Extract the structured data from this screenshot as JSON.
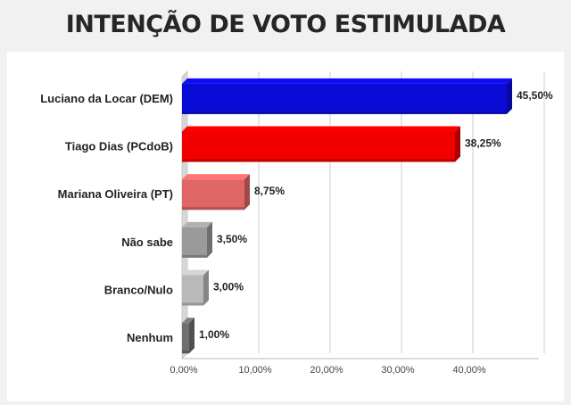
{
  "header": {
    "title": "INTENÇÃO DE VOTO ESTIMULADA"
  },
  "chart_data": {
    "type": "bar",
    "orientation": "horizontal",
    "title": "INTENÇÃO DE VOTO ESTIMULADA",
    "categories": [
      "Luciano da Locar (DEM)",
      "Tiago Dias (PCdoB)",
      "Mariana Oliveira (PT)",
      "Não sabe",
      "Branco/Nulo",
      "Nenhum"
    ],
    "values": [
      45.5,
      38.25,
      8.75,
      3.5,
      3.0,
      1.0
    ],
    "value_labels": [
      "45,50%",
      "38,25%",
      "8,75%",
      "3,50%",
      "3,00%",
      "1,00%"
    ],
    "colors": [
      "#0b0bd8",
      "#f20000",
      "#e06666",
      "#9a9a9a",
      "#b9b9b9",
      "#6f6f6f"
    ],
    "xlim": [
      0,
      50
    ],
    "xticks": [
      0,
      10,
      20,
      30,
      40,
      50
    ],
    "xtick_labels": [
      "0,00%",
      "10,00%",
      "20,00%",
      "30,00%",
      "40,00%",
      ""
    ],
    "xlabel": "",
    "ylabel": "",
    "grid": true,
    "legend": "none"
  }
}
